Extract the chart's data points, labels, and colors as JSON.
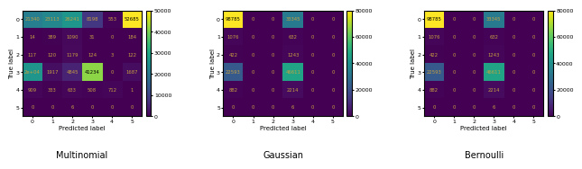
{
  "multinomial": {
    "matrix": [
      [
        21340,
        23113,
        26241,
        8198,
        553,
        52685
      ],
      [
        14,
        389,
        1090,
        31,
        0,
        184
      ],
      [
        117,
        120,
        1179,
        124,
        3,
        122
      ],
      [
        26000,
        1917,
        4845,
        41234,
        0,
        1687
      ],
      [
        909,
        333,
        633,
        508,
        712,
        1
      ],
      [
        0,
        0,
        6,
        0,
        0,
        0
      ]
    ],
    "title": "Multinomial",
    "vmin": 0,
    "vmax": 50000,
    "cbar_ticks": [
      0,
      10000,
      20000,
      30000,
      40000,
      50000
    ]
  },
  "gaussian": {
    "matrix": [
      [
        98785,
        0,
        0,
        33345,
        0,
        0
      ],
      [
        1076,
        0,
        0,
        632,
        0,
        0
      ],
      [
        422,
        0,
        0,
        1243,
        0,
        0
      ],
      [
        22593,
        0,
        0,
        46611,
        0,
        0
      ],
      [
        882,
        0,
        0,
        2214,
        0,
        0
      ],
      [
        0,
        0,
        0,
        6,
        0,
        0
      ]
    ],
    "title": "Gaussian",
    "vmin": 0,
    "vmax": 80000,
    "cbar_ticks": [
      0,
      20000,
      40000,
      60000,
      80000
    ]
  },
  "bernoulli": {
    "matrix": [
      [
        98785,
        0,
        0,
        33345,
        0,
        0
      ],
      [
        1076,
        0,
        0,
        632,
        0,
        0
      ],
      [
        422,
        0,
        0,
        1243,
        0,
        0
      ],
      [
        22593,
        0,
        0,
        46611,
        0,
        0
      ],
      [
        882,
        0,
        0,
        2214,
        0,
        0
      ],
      [
        0,
        0,
        0,
        6,
        0,
        0
      ]
    ],
    "title": "Bernoulli",
    "vmin": 0,
    "vmax": 80000,
    "cbar_ticks": [
      0,
      20000,
      40000,
      60000,
      80000
    ]
  },
  "xlabel": "Predicted label",
  "ylabel": "True label",
  "tick_labels": [
    "0",
    "1",
    "2",
    "3",
    "4",
    "5"
  ],
  "cmap": "viridis",
  "title_fontsize": 7,
  "label_fontsize": 5,
  "tick_fontsize": 4.5,
  "annot_fontsize": 3.8,
  "cbar_fontsize": 4.5
}
